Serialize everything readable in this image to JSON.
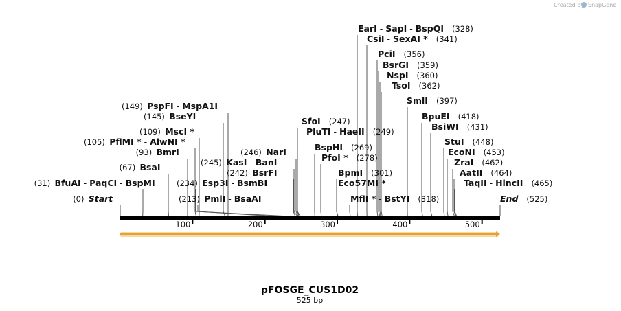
{
  "credit": {
    "prefix": "Created by",
    "brand": "SnapGene"
  },
  "sequence": {
    "name": "pFOSGE_CUS1D02",
    "length_label": "525 bp",
    "length": 525
  },
  "ruler": {
    "ticks": [
      100,
      200,
      300,
      400,
      500
    ]
  },
  "features": [
    {
      "name": "",
      "start": 1,
      "end": 525,
      "color": "#e8a030",
      "direction": "forward"
    }
  ],
  "colors": {
    "backbone": "#000000",
    "feature": "#e8a030",
    "feature_glow": "#f6d9a8",
    "lead": "#555555"
  },
  "sites": [
    {
      "names": [
        "Start"
      ],
      "pos": "(0)",
      "bp": 0,
      "posLeft": true,
      "italic": true
    },
    {
      "names": [
        "BfuAI",
        "PaqCI",
        "BspMI"
      ],
      "pos": "(31)",
      "bp": 31,
      "posLeft": true
    },
    {
      "names": [
        "BsaI"
      ],
      "pos": "(67)",
      "bp": 67,
      "posLeft": true
    },
    {
      "names": [
        "BmrI"
      ],
      "pos": "(93)",
      "bp": 93,
      "posLeft": true
    },
    {
      "names": [
        "PflMI *",
        "AlwNI *"
      ],
      "pos": "(105)",
      "bp": 105,
      "posLeft": true
    },
    {
      "names": [
        "MscI *"
      ],
      "pos": "(109)",
      "bp": 109,
      "posLeft": true
    },
    {
      "names": [
        "BseYI"
      ],
      "pos": "(145)",
      "bp": 145,
      "posLeft": true
    },
    {
      "names": [
        "PspFI",
        "MspA1I"
      ],
      "pos": "(149)",
      "bp": 149,
      "posLeft": true
    },
    {
      "names": [
        "PmlI",
        "BsaAI"
      ],
      "pos": "(213)",
      "bp": 213,
      "posLeft": true
    },
    {
      "names": [
        "Esp3I",
        "BsmBI"
      ],
      "pos": "(234)",
      "bp": 234,
      "posLeft": true
    },
    {
      "names": [
        "BsrFI"
      ],
      "pos": "(242)",
      "bp": 242,
      "posLeft": true
    },
    {
      "names": [
        "KasI",
        "BanI"
      ],
      "pos": "(245)",
      "bp": 245,
      "posLeft": true
    },
    {
      "names": [
        "NarI"
      ],
      "pos": "(246)",
      "bp": 246,
      "posLeft": true
    },
    {
      "names": [
        "SfoI"
      ],
      "pos": "(247)",
      "bp": 247,
      "posLeft": false
    },
    {
      "names": [
        "PluTI",
        "HaeII"
      ],
      "pos": "(249)",
      "bp": 249,
      "posLeft": false
    },
    {
      "names": [
        "BspHI"
      ],
      "pos": "(269)",
      "bp": 269,
      "posLeft": false
    },
    {
      "names": [
        "PfoI *"
      ],
      "pos": "(278)",
      "bp": 278,
      "posLeft": false
    },
    {
      "names": [
        "BpmI"
      ],
      "pos": "(301)",
      "bp": 301,
      "posLeft": false
    },
    {
      "names": [
        "Eco57MI *"
      ],
      "pos": "",
      "bp": 301,
      "posLeft": false
    },
    {
      "names": [
        "MflI *",
        "BstYI"
      ],
      "pos": "(318)",
      "bp": 318,
      "posLeft": false
    },
    {
      "names": [
        "EarI",
        "SapI",
        "BspQI"
      ],
      "pos": "(328)",
      "bp": 328,
      "posLeft": false
    },
    {
      "names": [
        "CsiI",
        "SexAI *"
      ],
      "pos": "(341)",
      "bp": 341,
      "posLeft": false
    },
    {
      "names": [
        "PciI"
      ],
      "pos": "(356)",
      "bp": 356,
      "posLeft": false
    },
    {
      "names": [
        "BsrGI"
      ],
      "pos": "(359)",
      "bp": 359,
      "posLeft": false
    },
    {
      "names": [
        "NspI"
      ],
      "pos": "(360)",
      "bp": 360,
      "posLeft": false
    },
    {
      "names": [
        "TsoI"
      ],
      "pos": "(362)",
      "bp": 362,
      "posLeft": false
    },
    {
      "names": [
        "SmlI"
      ],
      "pos": "(397)",
      "bp": 397,
      "posLeft": false
    },
    {
      "names": [
        "BpuEI"
      ],
      "pos": "(418)",
      "bp": 418,
      "posLeft": false
    },
    {
      "names": [
        "BsiWI"
      ],
      "pos": "(431)",
      "bp": 431,
      "posLeft": false
    },
    {
      "names": [
        "StuI"
      ],
      "pos": "(448)",
      "bp": 448,
      "posLeft": false
    },
    {
      "names": [
        "EcoNI"
      ],
      "pos": "(453)",
      "bp": 453,
      "posLeft": false
    },
    {
      "names": [
        "ZraI"
      ],
      "pos": "(462)",
      "bp": 462,
      "posLeft": false
    },
    {
      "names": [
        "AatII"
      ],
      "pos": "(464)",
      "bp": 464,
      "posLeft": false
    },
    {
      "names": [
        "TaqII",
        "HincII"
      ],
      "pos": "(465)",
      "bp": 465,
      "posLeft": false
    },
    {
      "names": [
        "End"
      ],
      "pos": "(525)",
      "bp": 525,
      "posLeft": false,
      "italic": true
    }
  ]
}
